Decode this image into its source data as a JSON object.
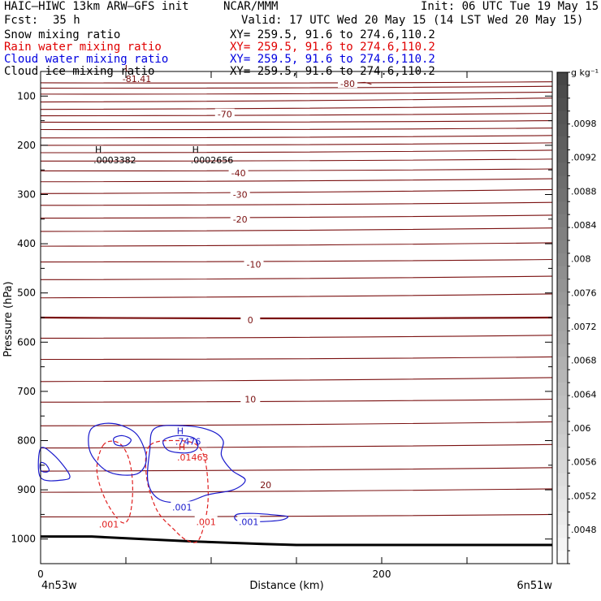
{
  "header": {
    "model": "HAIC–HIWC 13km ARW–GFS init",
    "center": "NCAR/MMM",
    "init": "Init: 06 UTC Tue 19 May 15",
    "fcst_label": "Fcst:",
    "fcst_value": "35 h",
    "valid": "Valid: 17 UTC Wed 20 May 15 (14 LST Wed 20 May 15)",
    "fields": [
      {
        "name": "Snow mixing ratio",
        "xy": "XY= 259.5, 91.6 to 274.6,110.2"
      },
      {
        "name": "Rain water mixing ratio",
        "xy": "XY= 259.5, 91.6 to 274.6,110.2"
      },
      {
        "name": "Cloud water mixing ratio",
        "xy": "XY= 259.5, 91.6 to 274.6,110.2"
      },
      {
        "name": "Cloud ice mixing ratio",
        "xy": "XY= 259.5, 91.6 to 274.6,110.2"
      }
    ]
  },
  "chart_data": {
    "type": "line",
    "subtype": "vertical cross-section contour plot",
    "xlabel": "Distance (km)",
    "ylabel": "Pressure (hPa)",
    "xlim": [
      0,
      300
    ],
    "xticks": [
      0,
      200
    ],
    "ylim": [
      1050,
      50
    ],
    "yticks": [
      100,
      200,
      300,
      400,
      500,
      600,
      700,
      800,
      900,
      1000
    ],
    "left_endpoint": "4n53w",
    "right_endpoint": "6n51w",
    "colors": {
      "temperature": "#7a1010",
      "rain": "#e02020",
      "cloud_water": "#1a1acc",
      "terrain": "#000000",
      "grid": "#000000"
    },
    "temperature_isotherms": {
      "interval": 5,
      "labels": [
        {
          "text": "-80",
          "x": 180,
          "p": 75
        },
        {
          "text": "-70",
          "x": 108,
          "p": 137
        },
        {
          "text": "-40",
          "x": 116,
          "p": 256
        },
        {
          "text": "-30",
          "x": 117,
          "p": 300
        },
        {
          "text": "-20",
          "x": 117,
          "p": 350
        },
        {
          "text": "-10",
          "x": 125,
          "p": 442
        },
        {
          "text": "0",
          "x": 123,
          "p": 555
        },
        {
          "text": "10",
          "x": 123,
          "p": 716
        },
        {
          "text": "20",
          "x": 132,
          "p": 890
        }
      ],
      "lines": [
        {
          "p0": 73,
          "p1": 71
        },
        {
          "p0": 84,
          "p1": 80
        },
        {
          "p0": 96,
          "p1": 92
        },
        {
          "p0": 112,
          "p1": 104
        },
        {
          "p0": 127,
          "p1": 120
        },
        {
          "p0": 140,
          "p1": 135
        },
        {
          "p0": 153,
          "p1": 150
        },
        {
          "p0": 168,
          "p1": 165
        },
        {
          "p0": 185,
          "p1": 180
        },
        {
          "p0": 200,
          "p1": 195
        },
        {
          "p0": 215,
          "p1": 210
        },
        {
          "p0": 232,
          "p1": 228
        },
        {
          "p0": 252,
          "p1": 248
        },
        {
          "p0": 274,
          "p1": 268
        },
        {
          "p0": 298,
          "p1": 290
        },
        {
          "p0": 322,
          "p1": 316
        },
        {
          "p0": 348,
          "p1": 342
        },
        {
          "p0": 375,
          "p1": 368
        },
        {
          "p0": 405,
          "p1": 398
        },
        {
          "p0": 437,
          "p1": 432
        },
        {
          "p0": 473,
          "p1": 466
        },
        {
          "p0": 510,
          "p1": 502
        },
        {
          "p0": 550,
          "p1": 550,
          "bold": true
        },
        {
          "p0": 592,
          "p1": 586
        },
        {
          "p0": 635,
          "p1": 630
        },
        {
          "p0": 680,
          "p1": 672
        },
        {
          "p0": 722,
          "p1": 716
        },
        {
          "p0": 770,
          "p1": 762
        },
        {
          "p0": 815,
          "p1": 808
        },
        {
          "p0": 862,
          "p1": 855
        },
        {
          "p0": 905,
          "p1": 898
        },
        {
          "p0": 955,
          "p1": 950
        }
      ]
    },
    "extrema": [
      {
        "kind": "L",
        "value": "-81.41",
        "x": 48,
        "p": 63,
        "color": "#7a1010"
      },
      {
        "kind": "H",
        "value": ".0003382",
        "x": 31,
        "p": 228,
        "color": "#000000"
      },
      {
        "kind": "H",
        "value": ".0002656",
        "x": 88,
        "p": 228,
        "color": "#000000"
      },
      {
        "kind": "H",
        "value": ".7476",
        "x": 79,
        "p": 800,
        "color": "#1a1acc"
      },
      {
        "kind": "H",
        "value": ".01463",
        "x": 80,
        "p": 832,
        "color": "#e02020"
      }
    ],
    "series": [
      {
        "name": "Rain water mixing ratio",
        "color": "#e02020",
        "dashed": true,
        "contour_label": ".001",
        "label_points": [
          {
            "x": 40,
            "p": 970
          },
          {
            "x": 97,
            "p": 965
          }
        ],
        "contours": [
          [
            [
              37,
              808
            ],
            [
              33,
              860
            ],
            [
              38,
              920
            ],
            [
              47,
              965
            ],
            [
              52,
              955
            ],
            [
              54,
              900
            ],
            [
              52,
              840
            ],
            [
              46,
              805
            ]
          ],
          [
            [
              64,
              810
            ],
            [
              62,
              870
            ],
            [
              68,
              940
            ],
            [
              78,
              980
            ],
            [
              86,
              1003
            ],
            [
              93,
              1000
            ],
            [
              98,
              930
            ],
            [
              97,
              850
            ],
            [
              92,
              810
            ],
            [
              80,
              800
            ]
          ]
        ]
      },
      {
        "name": "Cloud water mixing ratio",
        "color": "#1a1acc",
        "dashed": false,
        "contour_label": ".001",
        "label_points": [
          {
            "x": 83,
            "p": 935
          },
          {
            "x": 122,
            "p": 965
          }
        ],
        "contours": [
          [
            [
              30,
              775
            ],
            [
              38,
              765
            ],
            [
              48,
              770
            ],
            [
              57,
              790
            ],
            [
              62,
              835
            ],
            [
              58,
              865
            ],
            [
              48,
              870
            ],
            [
              38,
              860
            ],
            [
              30,
              830
            ],
            [
              28,
              800
            ]
          ],
          [
            [
              43,
              795
            ],
            [
              48,
              790
            ],
            [
              53,
              798
            ],
            [
              50,
              810
            ],
            [
              44,
              808
            ]
          ],
          [
            [
              0,
              816
            ],
            [
              8,
              830
            ],
            [
              17,
              870
            ],
            [
              13,
              880
            ],
            [
              0,
              875
            ]
          ],
          [
            [
              0,
              845
            ],
            [
              3,
              848
            ],
            [
              5,
              860
            ],
            [
              3,
              864
            ],
            [
              0,
              860
            ]
          ],
          [
            [
              67,
              775
            ],
            [
              85,
              770
            ],
            [
              100,
              780
            ],
            [
              107,
              800
            ],
            [
              106,
              830
            ],
            [
              112,
              860
            ],
            [
              120,
              880
            ],
            [
              113,
              900
            ],
            [
              98,
              910
            ],
            [
              85,
              925
            ],
            [
              70,
              920
            ],
            [
              63,
              885
            ],
            [
              64,
              820
            ]
          ],
          [
            [
              72,
              800
            ],
            [
              80,
              790
            ],
            [
              90,
              795
            ],
            [
              92,
              815
            ],
            [
              86,
              825
            ],
            [
              75,
              820
            ]
          ],
          [
            [
              115,
              950
            ],
            [
              125,
              948
            ],
            [
              140,
              952
            ],
            [
              145,
              955
            ],
            [
              140,
              962
            ],
            [
              125,
              965
            ],
            [
              115,
              962
            ]
          ]
        ]
      }
    ],
    "terrain": [
      [
        0,
        995
      ],
      [
        30,
        995
      ],
      [
        60,
        1000
      ],
      [
        90,
        1005
      ],
      [
        130,
        1010
      ],
      [
        150,
        1012
      ],
      [
        200,
        1012
      ],
      [
        300,
        1012
      ]
    ],
    "colorbar": {
      "unit": "g kg⁻¹",
      "labels": [
        ".0098",
        ".0092",
        ".0088",
        ".0084",
        ".008",
        ".0076",
        ".0072",
        ".0068",
        ".0064",
        ".006",
        ".0056",
        ".0052",
        ".0048"
      ]
    }
  }
}
